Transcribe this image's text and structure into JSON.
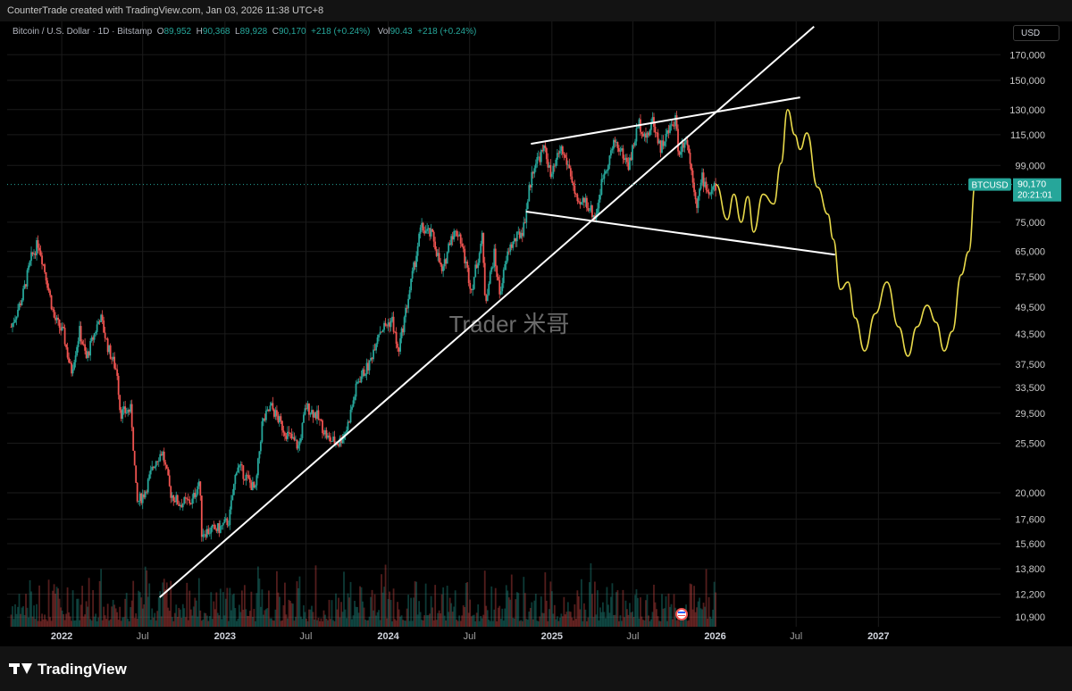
{
  "header": {
    "credit": "CounterTrade created with TradingView.com, Jan 03, 2026 11:38 UTC+8"
  },
  "legend": {
    "symbol": "Bitcoin / U.S. Dollar · 1D · Bitstamp",
    "o_label": "O",
    "o_value": "89,952",
    "h_label": "H",
    "h_value": "90,368",
    "l_label": "L",
    "l_value": "89,928",
    "c_label": "C",
    "c_value": "90,170",
    "change": "+218 (+0.24%)",
    "vol_label": "Vol",
    "vol_value": "90.43",
    "vol_change": "+218 (+0.24%)"
  },
  "currency_button": "USD",
  "watermark": "Trader 米哥",
  "price_tag": {
    "symbol": "BTCUSD",
    "price": "90,170",
    "countdown": "20:21:01"
  },
  "footer": {
    "logo_text": "TradingView"
  },
  "colors": {
    "up": "#26a69a",
    "down": "#ef5350",
    "projection": "#e8d94a",
    "trendline": "#ffffff",
    "price_line": "#26a69a"
  },
  "chart_data": {
    "type": "candlestick",
    "title": "Bitcoin / U.S. Dollar · 1D · Bitstamp",
    "y_scale": "log",
    "ylim": [
      10400,
      200000
    ],
    "x_range": [
      "2021-09-01",
      "2027-10-01"
    ],
    "y_ticks": [
      {
        "label": "170,000",
        "value": 170000
      },
      {
        "label": "150,000",
        "value": 150000
      },
      {
        "label": "130,000",
        "value": 130000
      },
      {
        "label": "115,000",
        "value": 115000
      },
      {
        "label": "99,000",
        "value": 99000
      },
      {
        "label": "75,000",
        "value": 75000
      },
      {
        "label": "65,000",
        "value": 65000
      },
      {
        "label": "57,500",
        "value": 57500
      },
      {
        "label": "49,500",
        "value": 49500
      },
      {
        "label": "43,500",
        "value": 43500
      },
      {
        "label": "37,500",
        "value": 37500
      },
      {
        "label": "33,500",
        "value": 33500
      },
      {
        "label": "29,500",
        "value": 29500
      },
      {
        "label": "25,500",
        "value": 25500
      },
      {
        "label": "20,000",
        "value": 20000
      },
      {
        "label": "17,600",
        "value": 17600
      },
      {
        "label": "15,600",
        "value": 15600
      },
      {
        "label": "13,800",
        "value": 13800
      },
      {
        "label": "12,200",
        "value": 12200
      },
      {
        "label": "10,900",
        "value": 10900
      }
    ],
    "x_ticks": [
      {
        "label": "2022",
        "date": "2022-01-01",
        "bold": true
      },
      {
        "label": "Jul",
        "date": "2022-07-01",
        "bold": false
      },
      {
        "label": "2023",
        "date": "2023-01-01",
        "bold": true
      },
      {
        "label": "Jul",
        "date": "2023-07-01",
        "bold": false
      },
      {
        "label": "2024",
        "date": "2024-01-01",
        "bold": true
      },
      {
        "label": "Jul",
        "date": "2024-07-01",
        "bold": false
      },
      {
        "label": "2025",
        "date": "2025-01-01",
        "bold": true
      },
      {
        "label": "Jul",
        "date": "2025-07-01",
        "bold": false
      },
      {
        "label": "2026",
        "date": "2026-01-01",
        "bold": true
      },
      {
        "label": "Jul",
        "date": "2026-07-01",
        "bold": false
      },
      {
        "label": "2027",
        "date": "2027-01-01",
        "bold": true
      }
    ],
    "price_path": [
      [
        "2021-09-10",
        45000
      ],
      [
        "2021-10-05",
        52000
      ],
      [
        "2021-10-25",
        63000
      ],
      [
        "2021-11-10",
        68000
      ],
      [
        "2021-11-28",
        57000
      ],
      [
        "2021-12-15",
        47000
      ],
      [
        "2022-01-05",
        43500
      ],
      [
        "2022-01-22",
        36000
      ],
      [
        "2022-02-10",
        44000
      ],
      [
        "2022-02-25",
        38500
      ],
      [
        "2022-03-28",
        47500
      ],
      [
        "2022-04-15",
        40500
      ],
      [
        "2022-05-05",
        36000
      ],
      [
        "2022-05-12",
        29500
      ],
      [
        "2022-06-05",
        30000
      ],
      [
        "2022-06-18",
        19000
      ],
      [
        "2022-07-05",
        20000
      ],
      [
        "2022-07-30",
        23500
      ],
      [
        "2022-08-14",
        24500
      ],
      [
        "2022-09-01",
        20000
      ],
      [
        "2022-09-20",
        19000
      ],
      [
        "2022-10-20",
        19200
      ],
      [
        "2022-11-05",
        21300
      ],
      [
        "2022-11-10",
        16500
      ],
      [
        "2022-12-20",
        16800
      ],
      [
        "2023-01-10",
        17500
      ],
      [
        "2023-01-28",
        23000
      ],
      [
        "2023-03-10",
        20200
      ],
      [
        "2023-03-25",
        28000
      ],
      [
        "2023-04-14",
        30500
      ],
      [
        "2023-05-15",
        27000
      ],
      [
        "2023-06-15",
        25000
      ],
      [
        "2023-07-01",
        30500
      ],
      [
        "2023-07-25",
        29200
      ],
      [
        "2023-08-20",
        26000
      ],
      [
        "2023-09-12",
        25500
      ],
      [
        "2023-10-01",
        27500
      ],
      [
        "2023-10-25",
        34500
      ],
      [
        "2023-11-20",
        37500
      ],
      [
        "2023-12-10",
        44000
      ],
      [
        "2024-01-10",
        46500
      ],
      [
        "2024-01-23",
        39500
      ],
      [
        "2024-02-15",
        52000
      ],
      [
        "2024-03-01",
        62000
      ],
      [
        "2024-03-14",
        73000
      ],
      [
        "2024-04-10",
        70000
      ],
      [
        "2024-05-01",
        58000
      ],
      [
        "2024-05-20",
        70500
      ],
      [
        "2024-06-07",
        71500
      ],
      [
        "2024-07-05",
        54000
      ],
      [
        "2024-07-29",
        69500
      ],
      [
        "2024-08-05",
        51000
      ],
      [
        "2024-08-25",
        64000
      ],
      [
        "2024-09-06",
        53000
      ],
      [
        "2024-09-27",
        66000
      ],
      [
        "2024-10-29",
        72500
      ],
      [
        "2024-11-12",
        89000
      ],
      [
        "2024-11-22",
        99500
      ],
      [
        "2024-12-17",
        107500
      ],
      [
        "2024-12-30",
        92500
      ],
      [
        "2025-01-20",
        108000
      ],
      [
        "2025-02-10",
        97000
      ],
      [
        "2025-02-28",
        80000
      ],
      [
        "2025-03-15",
        84000
      ],
      [
        "2025-04-08",
        76500
      ],
      [
        "2025-04-25",
        94000
      ],
      [
        "2025-05-22",
        111500
      ],
      [
        "2025-06-22",
        99000
      ],
      [
        "2025-07-14",
        122000
      ],
      [
        "2025-08-02",
        113000
      ],
      [
        "2025-08-14",
        124000
      ],
      [
        "2025-09-01",
        108000
      ],
      [
        "2025-10-06",
        126000
      ],
      [
        "2025-10-10",
        105000
      ],
      [
        "2025-10-28",
        114000
      ],
      [
        "2025-11-21",
        82000
      ],
      [
        "2025-12-03",
        93000
      ],
      [
        "2025-12-20",
        86000
      ],
      [
        "2026-01-03",
        90170
      ]
    ],
    "projection_path": [
      [
        "2026-01-03",
        90170
      ],
      [
        "2026-01-28",
        76000
      ],
      [
        "2026-02-12",
        86000
      ],
      [
        "2026-02-28",
        75000
      ],
      [
        "2026-03-15",
        85000
      ],
      [
        "2026-03-28",
        71500
      ],
      [
        "2026-04-18",
        86000
      ],
      [
        "2026-05-12",
        82000
      ],
      [
        "2026-05-28",
        100000
      ],
      [
        "2026-06-12",
        130000
      ],
      [
        "2026-06-28",
        115000
      ],
      [
        "2026-07-10",
        107000
      ],
      [
        "2026-07-25",
        116000
      ],
      [
        "2026-08-18",
        89000
      ],
      [
        "2026-09-10",
        78000
      ],
      [
        "2026-09-22",
        69000
      ],
      [
        "2026-10-08",
        54000
      ],
      [
        "2026-10-25",
        56000
      ],
      [
        "2026-11-10",
        47000
      ],
      [
        "2026-12-01",
        40000
      ],
      [
        "2026-12-25",
        48000
      ],
      [
        "2027-01-20",
        56000
      ],
      [
        "2027-02-15",
        45000
      ],
      [
        "2027-03-08",
        39000
      ],
      [
        "2027-03-28",
        45000
      ],
      [
        "2027-04-20",
        50000
      ],
      [
        "2027-05-10",
        46000
      ],
      [
        "2027-05-28",
        40000
      ],
      [
        "2027-06-15",
        44000
      ],
      [
        "2027-07-05",
        58000
      ],
      [
        "2027-07-22",
        65000
      ],
      [
        "2027-08-06",
        91000
      ]
    ],
    "trendlines": [
      {
        "name": "support-trendline",
        "p1": [
          "2022-08-08",
          12000
        ],
        "p2": [
          "2026-08-10",
          195000
        ]
      },
      {
        "name": "channel-top",
        "p1": [
          "2024-11-15",
          110000
        ],
        "p2": [
          "2026-07-10",
          138000
        ]
      },
      {
        "name": "channel-bottom",
        "p1": [
          "2024-11-04",
          79000
        ],
        "p2": [
          "2026-09-26",
          64000
        ]
      }
    ],
    "last_price": 90170
  }
}
